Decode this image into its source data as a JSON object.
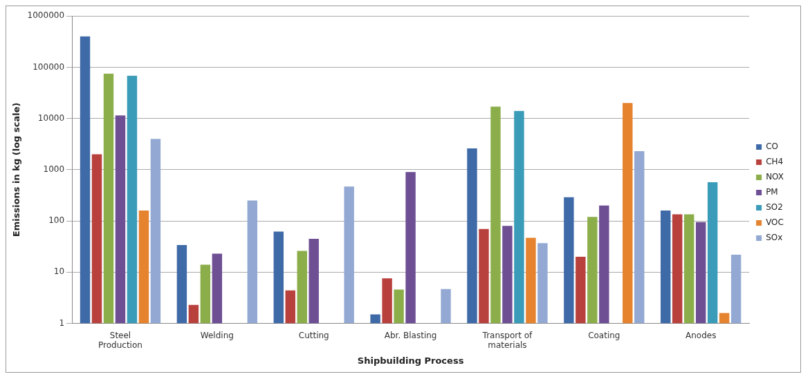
{
  "chart_data": {
    "type": "bar",
    "xlabel": "Shipbuilding Process",
    "ylabel": "Emissions in kg (log scale)",
    "categories": [
      "Steel Production",
      "Welding",
      "Cutting",
      "Abr. Blasting",
      "Transport of materials",
      "Coating",
      "Anodes"
    ],
    "series": [
      {
        "name": "CO",
        "color": "#3f6aa8",
        "values": [
          400000,
          34,
          62,
          1.5,
          2600,
          290,
          160
        ]
      },
      {
        "name": "CH4",
        "color": "#b9413d",
        "values": [
          2000,
          2.3,
          4.4,
          7.6,
          70,
          20,
          135
        ]
      },
      {
        "name": "NOX",
        "color": "#8cae4a",
        "values": [
          75000,
          14,
          26,
          4.6,
          17000,
          120,
          135
        ]
      },
      {
        "name": "PM",
        "color": "#6e4f94",
        "values": [
          11500,
          23,
          45,
          900,
          80,
          200,
          95
        ]
      },
      {
        "name": "SO2",
        "color": "#3a9cb8",
        "values": [
          68000,
          null,
          null,
          null,
          14000,
          null,
          570
        ]
      },
      {
        "name": "VOC",
        "color": "#e5832f",
        "values": [
          160,
          null,
          null,
          null,
          47,
          20000,
          1.6
        ]
      },
      {
        "name": "SOx",
        "color": "#93a9d3",
        "values": [
          4000,
          250,
          470,
          4.7,
          37,
          2300,
          22
        ]
      }
    ],
    "ylim": [
      1,
      1000000
    ],
    "yticks": [
      1,
      10,
      100,
      1000,
      10000,
      100000,
      1000000
    ],
    "log": true,
    "grid": "y",
    "legend": "right"
  }
}
